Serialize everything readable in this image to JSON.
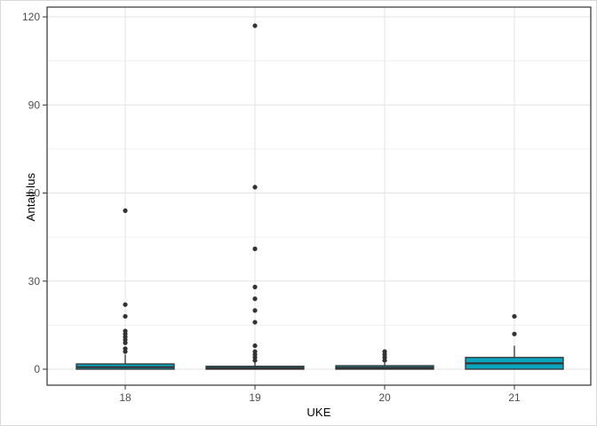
{
  "chart_data": {
    "type": "boxplot",
    "title": "",
    "xlabel": "UKE",
    "ylabel": "Antall lus",
    "categories": [
      "18",
      "19",
      "20",
      "21"
    ],
    "y_ticks": [
      0,
      30,
      60,
      90,
      120
    ],
    "y_minor_ticks": [
      15,
      45,
      75,
      105
    ],
    "ylim": [
      0,
      120
    ],
    "grid": "horizontal major+minor, vertical major at categories",
    "legend": "none",
    "boxes": [
      {
        "category": "18",
        "whisker_low": 0,
        "q1": 0,
        "median": 0.7,
        "q3": 1.8,
        "whisker_high": 5,
        "outliers": [
          6,
          7,
          9,
          10,
          11,
          12,
          13,
          18,
          22,
          54
        ]
      },
      {
        "category": "19",
        "whisker_low": 0,
        "q1": 0,
        "median": 0.4,
        "q3": 1.0,
        "whisker_high": 2.5,
        "outliers": [
          3,
          4,
          5,
          6,
          8,
          16,
          20,
          24,
          28,
          41,
          62,
          117
        ]
      },
      {
        "category": "20",
        "whisker_low": 0,
        "q1": 0,
        "median": 0.5,
        "q3": 1.2,
        "whisker_high": 2.2,
        "outliers": [
          3,
          4,
          5,
          6
        ]
      },
      {
        "category": "21",
        "whisker_low": 0,
        "q1": 0,
        "median": 2,
        "q3": 4,
        "whisker_high": 8,
        "outliers": [
          12,
          18
        ]
      }
    ],
    "colors": {
      "box_fill": "#0AA5BE",
      "box_stroke": "#333333",
      "outlier_point": "#333333",
      "grid_major": "#E3E3E3",
      "grid_minor": "#F1F1F1",
      "panel_border": "#333333",
      "tick_mark": "#333333",
      "tick_label": "#4D4D4D",
      "axis_title": "#000000",
      "panel_background": "#FFFFFF"
    }
  }
}
